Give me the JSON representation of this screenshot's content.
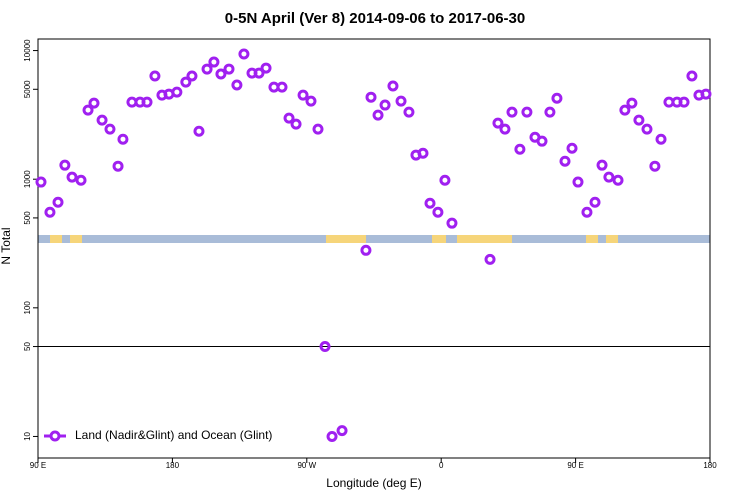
{
  "chart_data": {
    "type": "scatter",
    "title": "0-5N April (Ver 8)   2014-09-06 to 2017-06-30",
    "x_label": "Longitude (deg E)",
    "y_label": "N Total",
    "ylog": true,
    "hline": 50,
    "legend": "bottom-left",
    "xlim": [
      90,
      540
    ],
    "ylim": [
      6.8,
      12300
    ],
    "xticks": [
      {
        "value": 90,
        "label": "90 E"
      },
      180,
      {
        "value": 270,
        "label": "90 W"
      },
      {
        "value": 360,
        "label": "0"
      },
      {
        "value": 450,
        "label": "90 E"
      },
      {
        "value": 540,
        "label": "180"
      }
    ],
    "yticks": [
      10,
      50,
      100,
      500,
      1000,
      5000,
      10000
    ],
    "series": [
      {
        "name": "Land (Nadir&Glint) and Ocean (Glint)",
        "color": "#a020f0",
        "x": [
          92,
          98,
          103.4,
          108,
          112.8,
          118.8,
          123.5,
          127.5,
          132.9,
          138.2,
          143.6,
          146.9,
          152.9,
          158.3,
          163,
          168.3,
          173,
          177.7,
          183,
          189,
          193.1,
          197.8,
          203.2,
          207.8,
          212.5,
          217.9,
          223.2,
          227.9,
          233.3,
          238,
          242.7,
          248,
          253.4,
          258.1,
          262.8,
          267.5,
          272.8,
          277.5,
          282.2,
          286.9,
          293.6,
          309.6,
          313,
          317.7,
          322.4,
          327.7,
          333.1,
          338.4,
          343.1,
          347.8,
          352.5,
          357.8,
          362.5,
          367.2,
          392.7,
          398,
          402.7,
          407.4,
          412.7,
          417.4,
          422.8,
          427.5,
          432.8,
          437.5,
          442.9,
          447.6,
          451.6,
          457.6,
          463,
          467.7,
          472.3,
          478.4,
          483,
          487.7,
          492.4,
          497.8,
          503.1,
          507.2,
          512.5,
          517.9,
          522.6,
          527.9,
          532.6,
          537.3
        ],
        "values": [
          950,
          553,
          662,
          1285,
          1038,
          981,
          3444,
          3900,
          2877,
          2450,
          1262,
          2046,
          3970,
          3970,
          3970,
          6340,
          4500,
          4590,
          4750,
          5690,
          6340,
          2360,
          7180,
          8140,
          6570,
          7180,
          5400,
          9400,
          6680,
          6680,
          7310,
          5200,
          5200,
          2985,
          2680,
          4500,
          4045,
          2450,
          50,
          10,
          11.1,
          280,
          4340,
          3150,
          3770,
          5300,
          4045,
          3320,
          1540,
          1590,
          650,
          553,
          981,
          455,
          238,
          2730,
          2450,
          3320,
          1710,
          3320,
          2120,
          1975,
          3320,
          4260,
          1380,
          1740,
          950,
          553,
          662,
          1285,
          1038,
          981,
          3444,
          3900,
          2877,
          2450,
          1262,
          2046,
          3970,
          3970,
          3970,
          6340,
          4500,
          4590
        ]
      }
    ]
  }
}
